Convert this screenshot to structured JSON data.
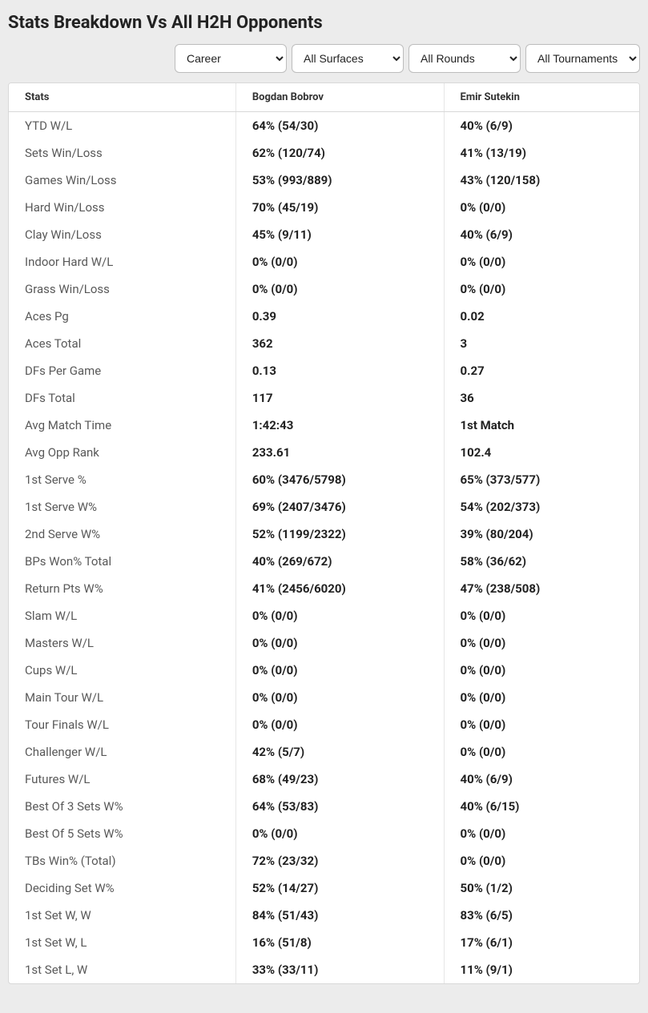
{
  "title": "Stats Breakdown Vs All H2H Opponents",
  "filters": {
    "period": {
      "selected": "Career",
      "options": [
        "Career"
      ]
    },
    "surface": {
      "selected": "All Surfaces",
      "options": [
        "All Surfaces"
      ]
    },
    "round": {
      "selected": "All Rounds",
      "options": [
        "All Rounds"
      ]
    },
    "tournament": {
      "selected": "All Tournaments",
      "options": [
        "All Tournaments"
      ]
    }
  },
  "columns": {
    "stat": "Stats",
    "p1": "Bogdan Bobrov",
    "p2": "Emir Sutekin"
  },
  "rows": [
    {
      "stat": "YTD W/L",
      "p1": "64% (54/30)",
      "p2": "40% (6/9)"
    },
    {
      "stat": "Sets Win/Loss",
      "p1": "62% (120/74)",
      "p2": "41% (13/19)"
    },
    {
      "stat": "Games Win/Loss",
      "p1": "53% (993/889)",
      "p2": "43% (120/158)"
    },
    {
      "stat": "Hard Win/Loss",
      "p1": "70% (45/19)",
      "p2": "0% (0/0)"
    },
    {
      "stat": "Clay Win/Loss",
      "p1": "45% (9/11)",
      "p2": "40% (6/9)"
    },
    {
      "stat": "Indoor Hard W/L",
      "p1": "0% (0/0)",
      "p2": "0% (0/0)"
    },
    {
      "stat": "Grass Win/Loss",
      "p1": "0% (0/0)",
      "p2": "0% (0/0)"
    },
    {
      "stat": "Aces Pg",
      "p1": "0.39",
      "p2": "0.02"
    },
    {
      "stat": "Aces Total",
      "p1": "362",
      "p2": "3"
    },
    {
      "stat": "DFs Per Game",
      "p1": "0.13",
      "p2": "0.27"
    },
    {
      "stat": "DFs Total",
      "p1": "117",
      "p2": "36"
    },
    {
      "stat": "Avg Match Time",
      "p1": "1:42:43",
      "p2": "1st Match"
    },
    {
      "stat": "Avg Opp Rank",
      "p1": "233.61",
      "p2": "102.4"
    },
    {
      "stat": "1st Serve %",
      "p1": "60% (3476/5798)",
      "p2": "65% (373/577)"
    },
    {
      "stat": "1st Serve W%",
      "p1": "69% (2407/3476)",
      "p2": "54% (202/373)"
    },
    {
      "stat": "2nd Serve W%",
      "p1": "52% (1199/2322)",
      "p2": "39% (80/204)"
    },
    {
      "stat": "BPs Won% Total",
      "p1": "40% (269/672)",
      "p2": "58% (36/62)"
    },
    {
      "stat": "Return Pts W%",
      "p1": "41% (2456/6020)",
      "p2": "47% (238/508)"
    },
    {
      "stat": "Slam W/L",
      "p1": "0% (0/0)",
      "p2": "0% (0/0)"
    },
    {
      "stat": "Masters W/L",
      "p1": "0% (0/0)",
      "p2": "0% (0/0)"
    },
    {
      "stat": "Cups W/L",
      "p1": "0% (0/0)",
      "p2": "0% (0/0)"
    },
    {
      "stat": "Main Tour W/L",
      "p1": "0% (0/0)",
      "p2": "0% (0/0)"
    },
    {
      "stat": "Tour Finals W/L",
      "p1": "0% (0/0)",
      "p2": "0% (0/0)"
    },
    {
      "stat": "Challenger W/L",
      "p1": "42% (5/7)",
      "p2": "0% (0/0)"
    },
    {
      "stat": "Futures W/L",
      "p1": "68% (49/23)",
      "p2": "40% (6/9)"
    },
    {
      "stat": "Best Of 3 Sets W%",
      "p1": "64% (53/83)",
      "p2": "40% (6/15)"
    },
    {
      "stat": "Best Of 5 Sets W%",
      "p1": "0% (0/0)",
      "p2": "0% (0/0)"
    },
    {
      "stat": "TBs Win% (Total)",
      "p1": "72% (23/32)",
      "p2": "0% (0/0)"
    },
    {
      "stat": "Deciding Set W%",
      "p1": "52% (14/27)",
      "p2": "50% (1/2)"
    },
    {
      "stat": "1st Set W, W",
      "p1": "84% (51/43)",
      "p2": "83% (6/5)"
    },
    {
      "stat": "1st Set W, L",
      "p1": "16% (51/8)",
      "p2": "17% (6/1)"
    },
    {
      "stat": "1st Set L, W",
      "p1": "33% (33/11)",
      "p2": "11% (9/1)"
    }
  ]
}
